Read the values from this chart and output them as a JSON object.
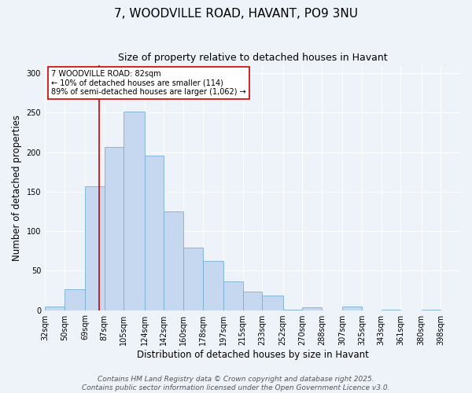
{
  "title": "7, WOODVILLE ROAD, HAVANT, PO9 3NU",
  "subtitle": "Size of property relative to detached houses in Havant",
  "xlabel": "Distribution of detached houses by size in Havant",
  "ylabel": "Number of detached properties",
  "bin_labels": [
    "32sqm",
    "50sqm",
    "69sqm",
    "87sqm",
    "105sqm",
    "124sqm",
    "142sqm",
    "160sqm",
    "178sqm",
    "197sqm",
    "215sqm",
    "233sqm",
    "252sqm",
    "270sqm",
    "288sqm",
    "307sqm",
    "325sqm",
    "343sqm",
    "361sqm",
    "380sqm",
    "398sqm"
  ],
  "bin_edges": [
    32,
    50,
    69,
    87,
    105,
    124,
    142,
    160,
    178,
    197,
    215,
    233,
    252,
    270,
    288,
    307,
    325,
    343,
    361,
    380,
    398
  ],
  "bar_heights": [
    5,
    26,
    157,
    207,
    251,
    196,
    125,
    79,
    62,
    36,
    23,
    18,
    1,
    4,
    0,
    5,
    0,
    1,
    0,
    1,
    0
  ],
  "bar_color": "#c5d8f0",
  "bar_edge_color": "#7aafd4",
  "property_size": 82,
  "property_line_color": "#cc0000",
  "annotation_title": "7 WOODVILLE ROAD: 82sqm",
  "annotation_line1": "← 10% of detached houses are smaller (114)",
  "annotation_line2": "89% of semi-detached houses are larger (1,062) →",
  "annotation_box_color": "#ffffff",
  "annotation_box_edge": "#cc0000",
  "ylim": [
    0,
    310
  ],
  "yticks": [
    0,
    50,
    100,
    150,
    200,
    250,
    300
  ],
  "footer1": "Contains HM Land Registry data © Crown copyright and database right 2025.",
  "footer2": "Contains public sector information licensed under the Open Government Licence v3.0.",
  "background_color": "#eef2f9",
  "grid_color": "#ffffff",
  "title_fontsize": 11,
  "subtitle_fontsize": 9,
  "axis_label_fontsize": 8.5,
  "tick_fontsize": 7,
  "footer_fontsize": 6.5,
  "annot_fontsize": 7
}
